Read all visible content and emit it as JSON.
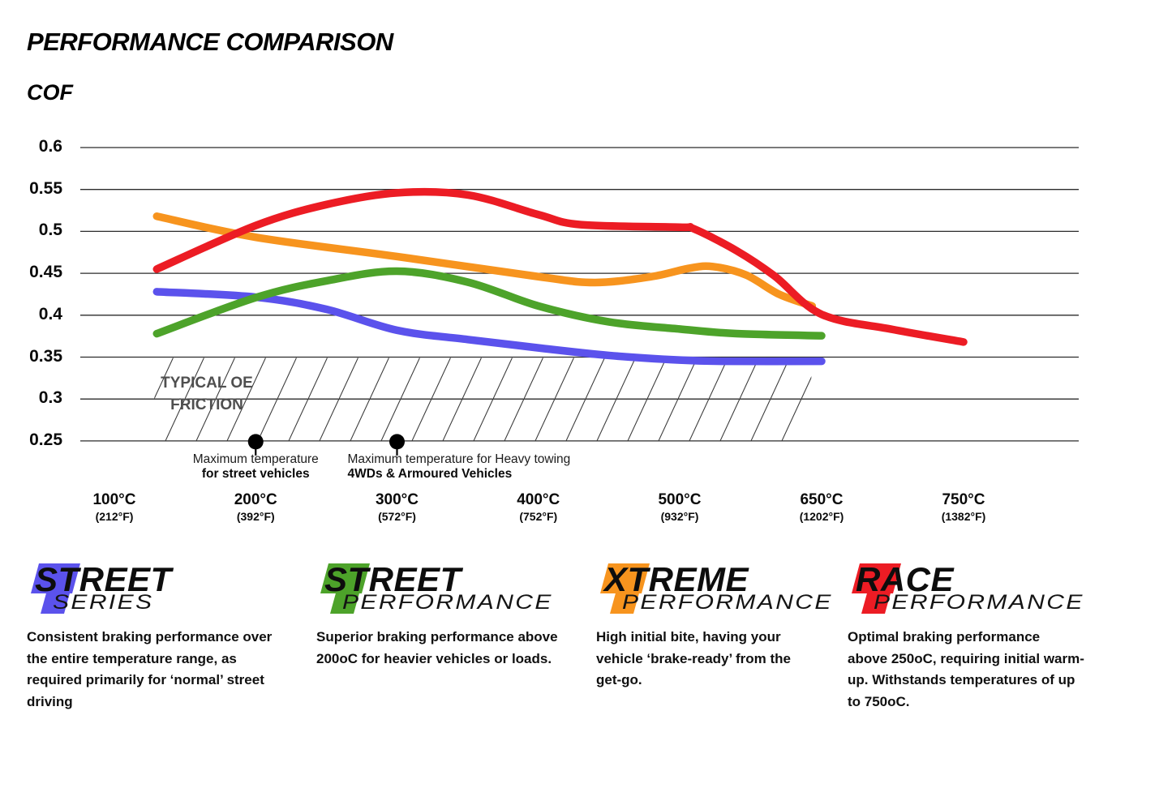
{
  "title": "PERFORMANCE COMPARISON",
  "cof_label": "COF",
  "chart_data": {
    "type": "line",
    "title": "PERFORMANCE COMPARISON",
    "ylabel": "COF",
    "ylim": [
      0.25,
      0.6
    ],
    "grid": true,
    "yticks": [
      {
        "value": 0.6,
        "label": "0.6"
      },
      {
        "value": 0.55,
        "label": "0.55"
      },
      {
        "value": 0.5,
        "label": "0.5"
      },
      {
        "value": 0.45,
        "label": "0.45"
      },
      {
        "value": 0.4,
        "label": "0.4"
      },
      {
        "value": 0.35,
        "label": "0.35"
      },
      {
        "value": 0.3,
        "label": "0.3"
      },
      {
        "value": 0.25,
        "label": "0.25"
      }
    ],
    "xticks": [
      {
        "temp_c": 100,
        "label_c": "100°C",
        "label_f": "(212°F)"
      },
      {
        "temp_c": 200,
        "label_c": "200°C",
        "label_f": "(392°F)"
      },
      {
        "temp_c": 300,
        "label_c": "300°C",
        "label_f": "(572°F)"
      },
      {
        "temp_c": 400,
        "label_c": "400°C",
        "label_f": "(752°F)"
      },
      {
        "temp_c": 500,
        "label_c": "500°C",
        "label_f": "(932°F)"
      },
      {
        "temp_c": 650,
        "label_c": "650°C",
        "label_f": "(1202°F)"
      },
      {
        "temp_c": 750,
        "label_c": "750°C",
        "label_f": "(1382°F)"
      }
    ],
    "series": [
      {
        "name": "Street Series",
        "color": "#5B52EC",
        "points": [
          [
            130,
            0.428
          ],
          [
            200,
            0.4215
          ],
          [
            250,
            0.407
          ],
          [
            300,
            0.382
          ],
          [
            350,
            0.371
          ],
          [
            400,
            0.361
          ],
          [
            450,
            0.352
          ],
          [
            500,
            0.3465
          ],
          [
            550,
            0.345
          ],
          [
            650,
            0.345
          ]
        ]
      },
      {
        "name": "Street Performance",
        "color": "#4DA32A",
        "points": [
          [
            130,
            0.378
          ],
          [
            200,
            0.421
          ],
          [
            250,
            0.441
          ],
          [
            300,
            0.4525
          ],
          [
            350,
            0.4395
          ],
          [
            400,
            0.411
          ],
          [
            450,
            0.392
          ],
          [
            500,
            0.3835
          ],
          [
            560,
            0.378
          ],
          [
            650,
            0.3755
          ]
        ]
      },
      {
        "name": "Xtreme Performance",
        "color": "#F7941E",
        "points": [
          [
            130,
            0.518
          ],
          [
            200,
            0.493
          ],
          [
            300,
            0.47
          ],
          [
            400,
            0.446
          ],
          [
            440,
            0.439
          ],
          [
            480,
            0.446
          ],
          [
            510,
            0.456
          ],
          [
            535,
            0.458
          ],
          [
            570,
            0.448
          ],
          [
            605,
            0.425
          ],
          [
            640,
            0.411
          ]
        ]
      },
      {
        "name": "Race Performance",
        "color": "#EC1C24",
        "points": [
          [
            130,
            0.455
          ],
          [
            200,
            0.507
          ],
          [
            250,
            0.532
          ],
          [
            300,
            0.546
          ],
          [
            350,
            0.5435
          ],
          [
            400,
            0.52
          ],
          [
            430,
            0.508
          ],
          [
            500,
            0.505
          ],
          [
            515,
            0.503
          ],
          [
            560,
            0.477
          ],
          [
            600,
            0.447
          ],
          [
            650,
            0.401
          ],
          [
            700,
            0.383
          ],
          [
            750,
            0.368
          ]
        ]
      }
    ],
    "oe_friction_band": {
      "label": [
        "TYPICAL OE",
        "FRICTION"
      ],
      "from_cof": 0.25,
      "to_cof": 0.35,
      "from_temp": 130,
      "to_temp": 640
    },
    "markers": [
      {
        "temp_c": 200,
        "align": "center",
        "line1": "Maximum temperature",
        "line2": "for street vehicles"
      },
      {
        "temp_c": 300,
        "align": "left",
        "line1": "Maximum temperature for Heavy towing",
        "line2": "4WDs & Armoured Vehicles"
      }
    ]
  },
  "legend": {
    "items": [
      {
        "name": "Street Series",
        "word1": "STREET",
        "word2": "SERIES",
        "color": "#5B52EC",
        "desc_lines": [
          "Consistent braking performance over",
          "the entire temperature range, as",
          "required primarily for ‘normal’ street",
          "driving"
        ]
      },
      {
        "name": "Street Performance",
        "word1": "STREET",
        "word2": "PERFORMANCE",
        "color": "#4DA32A",
        "desc_lines": [
          "Superior braking performance above",
          "200oC for heavier vehicles or loads."
        ]
      },
      {
        "name": "Xtreme Performance",
        "word1": "XTREME",
        "word2": "PERFORMANCE",
        "color": "#F7941E",
        "desc_lines": [
          "High initial bite, having your",
          "vehicle ‘brake-ready’ from the",
          "get-go."
        ]
      },
      {
        "name": "Race Performance",
        "word1": "RACE",
        "word2": "PERFORMANCE",
        "color": "#EC1C24",
        "desc_lines": [
          "Optimal braking performance",
          "above 250oC, requiring initial warm-",
          "up. Withstands temperatures of up",
          "to 750oC."
        ]
      }
    ]
  }
}
